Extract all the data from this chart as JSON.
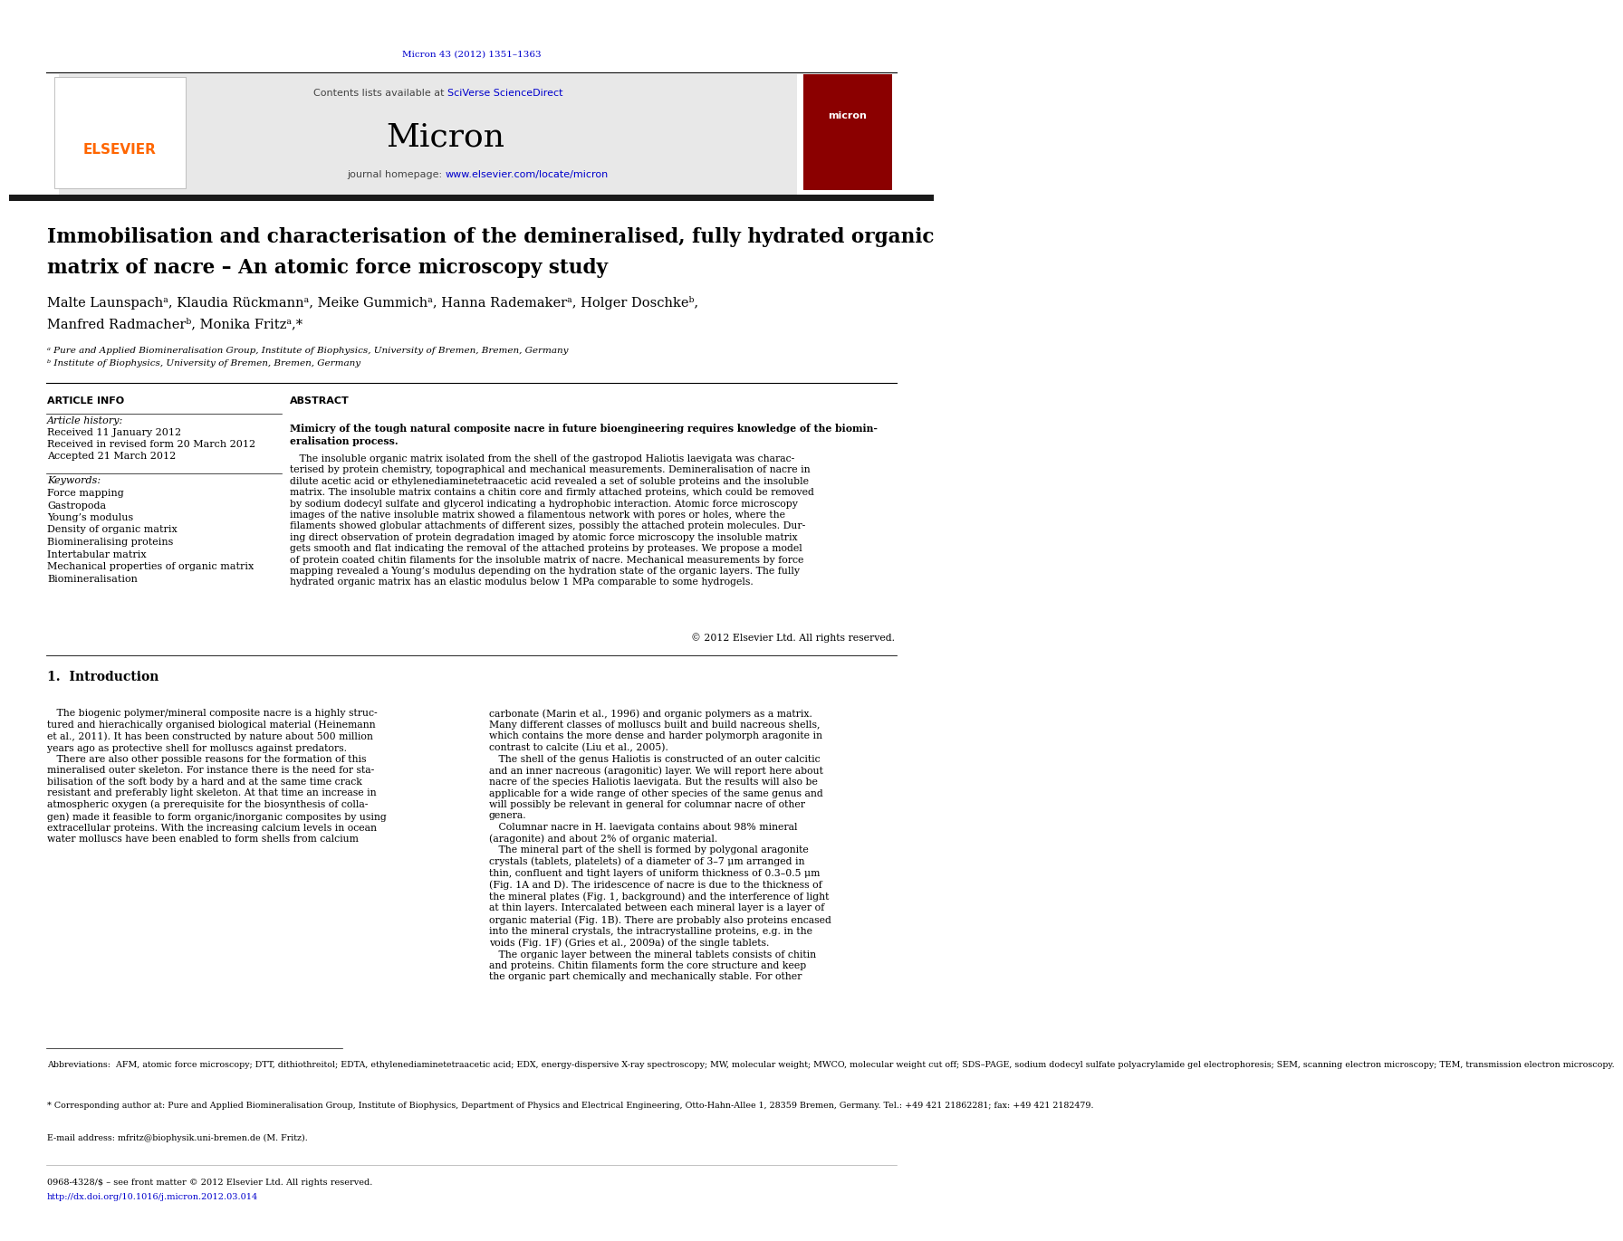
{
  "page_width": 10.21,
  "page_height": 13.51,
  "bg_color": "#ffffff",
  "journal_ref": "Micron 43 (2012) 1351–1363",
  "journal_ref_color": "#0000cc",
  "header_bg": "#e8e8e8",
  "contents_line": "Contents lists available at ",
  "sciverse_text": "SciVerse ScienceDirect",
  "sciverse_color": "#0000cc",
  "journal_name": "Micron",
  "journal_homepage_prefix": "journal homepage: ",
  "journal_url": "www.elsevier.com/locate/micron",
  "journal_url_color": "#0000cc",
  "elsevier_color": "#FF6600",
  "dark_bar_color": "#1a1a1a",
  "title_line1": "Immobilisation and characterisation of the demineralised, fully hydrated organic",
  "title_line2": "matrix of nacre – An atomic force microscopy study",
  "title_color": "#000000",
  "authors_line1": "Malte Launspachᵃ, Klaudia Rückmannᵃ, Meike Gummichᵃ, Hanna Rademakerᵃ, Holger Doschkeᵇ,",
  "authors_line2": "Manfred Radmacherᵇ, Monika Fritzᵃ,*",
  "affil_a": "ᵃ Pure and Applied Biomineralisation Group, Institute of Biophysics, University of Bremen, Bremen, Germany",
  "affil_b": "ᵇ Institute of Biophysics, University of Bremen, Bremen, Germany",
  "section_article_info": "ARTICLE INFO",
  "section_abstract": "ABSTRACT",
  "article_history_label": "Article history:",
  "received1": "Received 11 January 2012",
  "received2": "Received in revised form 20 March 2012",
  "accepted": "Accepted 21 March 2012",
  "keywords_label": "Keywords:",
  "keywords": [
    "Force mapping",
    "Gastropoda",
    "Young’s modulus",
    "Density of organic matrix",
    "Biomineralising proteins",
    "Intertabular matrix",
    "Mechanical properties of organic matrix",
    "Biomineralisation"
  ],
  "abstract_para1": "Mimicry of the tough natural composite nacre in future bioengineering requires knowledge of the biomin-\neralisation process.",
  "abstract_para2": "   The insoluble organic matrix isolated from the shell of the gastropod Haliotis laevigata was charac-\nterised by protein chemistry, topographical and mechanical measurements. Demineralisation of nacre in\ndilute acetic acid or ethylenediaminetetraacetic acid revealed a set of soluble proteins and the insoluble\nmatrix. The insoluble matrix contains a chitin core and firmly attached proteins, which could be removed\nby sodium dodecyl sulfate and glycerol indicating a hydrophobic interaction. Atomic force microscopy\nimages of the native insoluble matrix showed a filamentous network with pores or holes, where the\nfilaments showed globular attachments of different sizes, possibly the attached protein molecules. Dur-\ning direct observation of protein degradation imaged by atomic force microscopy the insoluble matrix\ngets smooth and flat indicating the removal of the attached proteins by proteases. We propose a model\nof protein coated chitin filaments for the insoluble matrix of nacre. Mechanical measurements by force\nmapping revealed a Young’s modulus depending on the hydration state of the organic layers. The fully\nhydrated organic matrix has an elastic modulus below 1 MPa comparable to some hydrogels.",
  "copyright": "© 2012 Elsevier Ltd. All rights reserved.",
  "intro_heading": "1.  Introduction",
  "intro_text_left": "   The biogenic polymer/mineral composite nacre is a highly struc-\ntured and hierachically organised biological material (Heinemann\net al., 2011). It has been constructed by nature about 500 million\nyears ago as protective shell for molluscs against predators.\n   There are also other possible reasons for the formation of this\nmineralised outer skeleton. For instance there is the need for sta-\nbilisation of the soft body by a hard and at the same time crack\nresistant and preferably light skeleton. At that time an increase in\natmospheric oxygen (a prerequisite for the biosynthesis of colla-\ngen) made it feasible to form organic/inorganic composites by using\nextracellular proteins. With the increasing calcium levels in ocean\nwater molluscs have been enabled to form shells from calcium",
  "intro_text_right": "carbonate (Marin et al., 1996) and organic polymers as a matrix.\nMany different classes of molluscs built and build nacreous shells,\nwhich contains the more dense and harder polymorph aragonite in\ncontrast to calcite (Liu et al., 2005).\n   The shell of the genus Haliotis is constructed of an outer calcitic\nand an inner nacreous (aragonitic) layer. We will report here about\nnacre of the species Haliotis laevigata. But the results will also be\napplicable for a wide range of other species of the same genus and\nwill possibly be relevant in general for columnar nacre of other\ngenera.\n   Columnar nacre in H. laevigata contains about 98% mineral\n(aragonite) and about 2% of organic material.\n   The mineral part of the shell is formed by polygonal aragonite\ncrystals (tablets, platelets) of a diameter of 3–7 μm arranged in\nthin, confluent and tight layers of uniform thickness of 0.3–0.5 μm\n(Fig. 1A and D). The iridescence of nacre is due to the thickness of\nthe mineral plates (Fig. 1, background) and the interference of light\nat thin layers. Intercalated between each mineral layer is a layer of\norganic material (Fig. 1B). There are probably also proteins encased\ninto the mineral crystals, the intracrystalline proteins, e.g. in the\nvoids (Fig. 1F) (Gries et al., 2009a) of the single tablets.\n   The organic layer between the mineral tablets consists of chitin\nand proteins. Chitin filaments form the core structure and keep\nthe organic part chemically and mechanically stable. For other",
  "footnote_abbrev": "Abbreviations:  AFM, atomic force microscopy; DTT, dithiothreitol; EDTA, ethylenediaminetetraacetic acid; EDX, energy-dispersive X-ray spectroscopy; MW, molecular weight; MWCO, molecular weight cut off; SDS–PAGE, sodium dodecyl sulfate polyacrylamide gel electrophoresis; SEM, scanning electron microscopy; TEM, transmission electron microscopy.",
  "footnote_corresp": "* Corresponding author at: Pure and Applied Biomineralisation Group, Institute of Biophysics, Department of Physics and Electrical Engineering, Otto-Hahn-Allee 1, 28359 Bremen, Germany. Tel.: +49 421 21862281; fax: +49 421 2182479.",
  "footnote_email": "E-mail address: mfritz@biophysik.uni-bremen.de (M. Fritz).",
  "footer_issn": "0968-4328/$ – see front matter © 2012 Elsevier Ltd. All rights reserved.",
  "footer_doi": "http://dx.doi.org/10.1016/j.micron.2012.03.014"
}
